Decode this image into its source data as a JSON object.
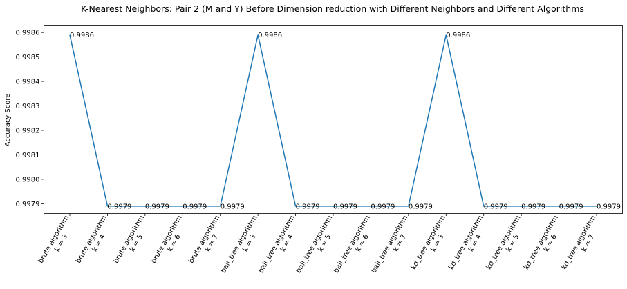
{
  "chart_data": {
    "type": "line",
    "title": "K-Nearest Neighbors: Pair 2 (M and Y) Before Dimension reduction with Different Neighbors and Different Algorithms",
    "ylabel": "Accuracy Score",
    "xlabel": "",
    "ylim": [
      0.99786,
      0.99863
    ],
    "yticks": [
      0.9979,
      0.998,
      0.9981,
      0.9982,
      0.9983,
      0.9984,
      0.9985,
      0.9986
    ],
    "ytick_labels": [
      "0.9979",
      "0.9980",
      "0.9981",
      "0.9982",
      "0.9983",
      "0.9984",
      "0.9985",
      "0.9986"
    ],
    "categories": [
      [
        "brute algorithm",
        "k = 3"
      ],
      [
        "brute algorithm",
        "k = 4"
      ],
      [
        "brute algorithm",
        "k = 5"
      ],
      [
        "brute algorithm",
        "k = 6"
      ],
      [
        "brute algorithm",
        "k = 7"
      ],
      [
        "ball_tree algorithm",
        "k = 3"
      ],
      [
        "ball_tree algorithm",
        "k = 4"
      ],
      [
        "ball_tree algorithm",
        "k = 5"
      ],
      [
        "ball_tree algorithm",
        "k = 6"
      ],
      [
        "ball_tree algorithm",
        "k = 7"
      ],
      [
        "kd_tree algorithm",
        "k = 3"
      ],
      [
        "kd_tree algorithm",
        "k = 4"
      ],
      [
        "kd_tree algorithm",
        "k = 5"
      ],
      [
        "kd_tree algorithm",
        "k = 6"
      ],
      [
        "kd_tree algorithm",
        "k = 7"
      ]
    ],
    "values": [
      0.99859,
      0.99789,
      0.99789,
      0.99789,
      0.99789,
      0.99859,
      0.99789,
      0.99789,
      0.99789,
      0.99789,
      0.99859,
      0.99789,
      0.99789,
      0.99789,
      0.99789
    ],
    "data_labels": [
      "0.9986",
      "0.9979",
      "0.9979",
      "0.9979",
      "0.9979",
      "0.9986",
      "0.9979",
      "0.9979",
      "0.9979",
      "0.9979",
      "0.9986",
      "0.9979",
      "0.9979",
      "0.9979",
      "0.9979"
    ],
    "line_color": "#1f77b4",
    "grid": false,
    "legend": "none"
  }
}
